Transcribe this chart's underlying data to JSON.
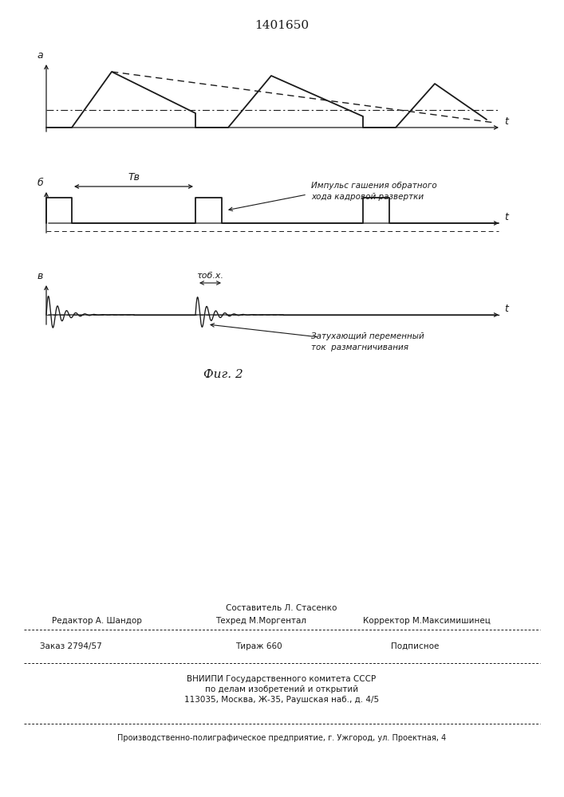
{
  "title": "1401650",
  "fig_caption": "Фиг. 2",
  "background_color": "#ffffff",
  "line_color": "#1a1a1a",
  "label_a": "а",
  "label_b": "б",
  "label_v": "в",
  "annotation1_line1": "Импульс гашения обратного",
  "annotation1_line2": "хода кадровой развертки",
  "annotation2_line1": "Затухающий переменный",
  "annotation2_line2": "ток  размагничивания",
  "label_TR": "Tв",
  "label_tobr": "τоб.х.",
  "footer_line1": "Составитель Л. Стасенко",
  "footer_line2_left": "Редактор А. Шандор",
  "footer_line2_mid": "Техред М.Моргентал",
  "footer_line2_right": "Корректор М.Максимишинец",
  "footer_line3_left": "Заказ 2794/57",
  "footer_line3_mid": "Тираж 660",
  "footer_line3_right": "Подписное",
  "footer_line4": "ВНИИПИ Государственного комитета СССР",
  "footer_line5": "по делам изобретений и открытий",
  "footer_line6": "113035, Москва, Ж-35, Раушская наб., д. 4/5",
  "footer_line7": "Производственно-полиграфическое предприятие, г. Ужгород, ул. Проектная, 4"
}
